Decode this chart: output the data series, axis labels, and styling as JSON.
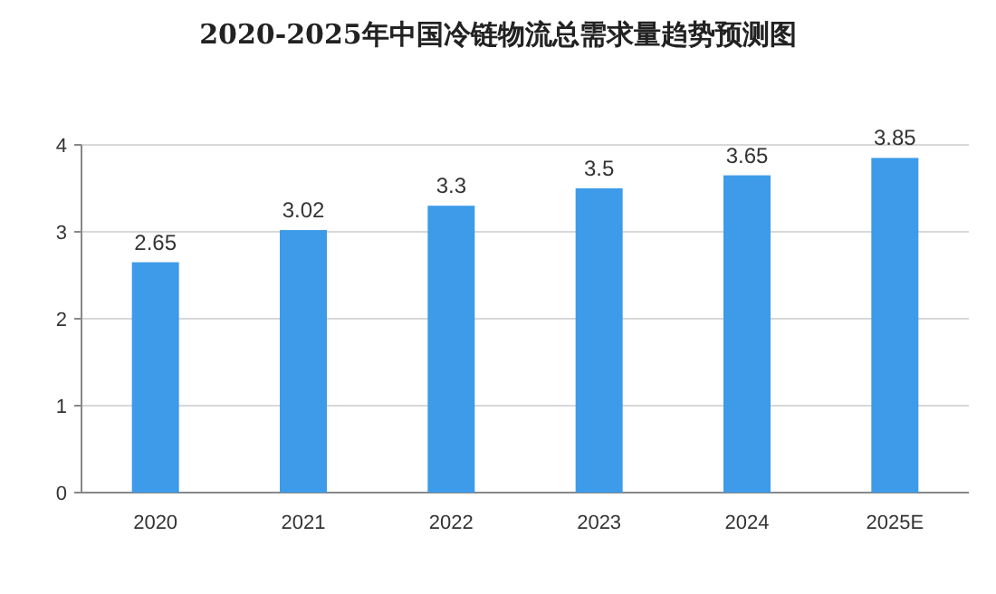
{
  "chart_data": {
    "type": "bar",
    "title": "2020-2025年中国冷链物流总需求量趋势预测图",
    "categories": [
      "2020",
      "2021",
      "2022",
      "2023",
      "2024",
      "2025E"
    ],
    "values": [
      2.65,
      3.02,
      3.3,
      3.5,
      3.65,
      3.85
    ],
    "color": "#3d9be9",
    "ylim": [
      0,
      4
    ],
    "yticks": [
      0,
      1,
      2,
      3,
      4
    ],
    "grid": "y",
    "data_labels": true
  }
}
